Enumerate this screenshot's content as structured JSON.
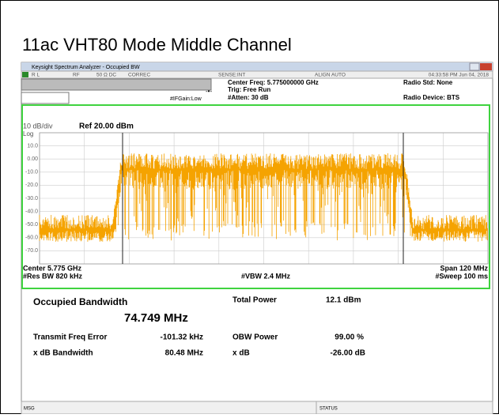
{
  "title": "11ac VHT80 Mode Middle Channel",
  "window": {
    "title": "Keysight Spectrum Analyzer - Occupied BW"
  },
  "status_bar": {
    "items": [
      "R L",
      "RF",
      "50 Ω  DC",
      "CORREC",
      "SENSE:INT",
      "ALIGN AUTO"
    ],
    "datetime": "04:33:58 PM Jun 04, 2018"
  },
  "settings": {
    "center_freq": "Center Freq: 5.775000000 GHz",
    "trig": "Trig: Free Run",
    "atten": "#Atten: 30 dB",
    "ifgain": "#IFGain:Low",
    "radio_std": "Radio Std: None",
    "radio_device": "Radio Device: BTS"
  },
  "graph": {
    "scale": "10 dB/div",
    "ref": "Ref 20.00 dBm",
    "log": "Log",
    "y_labels": [
      "10.0",
      "0.00",
      "-10.0",
      "-20.0",
      "-30.0",
      "-40.0",
      "-50.0",
      "-60.0",
      "-70.0"
    ],
    "center": "Center 5.775 GHz",
    "res_bw": "#Res BW 820 kHz",
    "vbw": "#VBW 2.4 MHz",
    "span": "Span 120 MHz",
    "sweep": "#Sweep 100 ms"
  },
  "results": {
    "occupied_bandwidth_label": "Occupied Bandwidth",
    "occupied_bandwidth": "74.749 MHz",
    "total_power_label": "Total Power",
    "total_power": "12.1 dBm",
    "freq_error_label": "Transmit Freq Error",
    "freq_error": "-101.32 kHz",
    "obw_power_label": "OBW Power",
    "obw_power": "99.00 %",
    "xdb_bw_label": "x dB Bandwidth",
    "xdb_bw": "80.48 MHz",
    "xdb_label": "x dB",
    "xdb": "-26.00 dB"
  },
  "footer": {
    "msg": "MSG",
    "status": "STATUS"
  }
}
